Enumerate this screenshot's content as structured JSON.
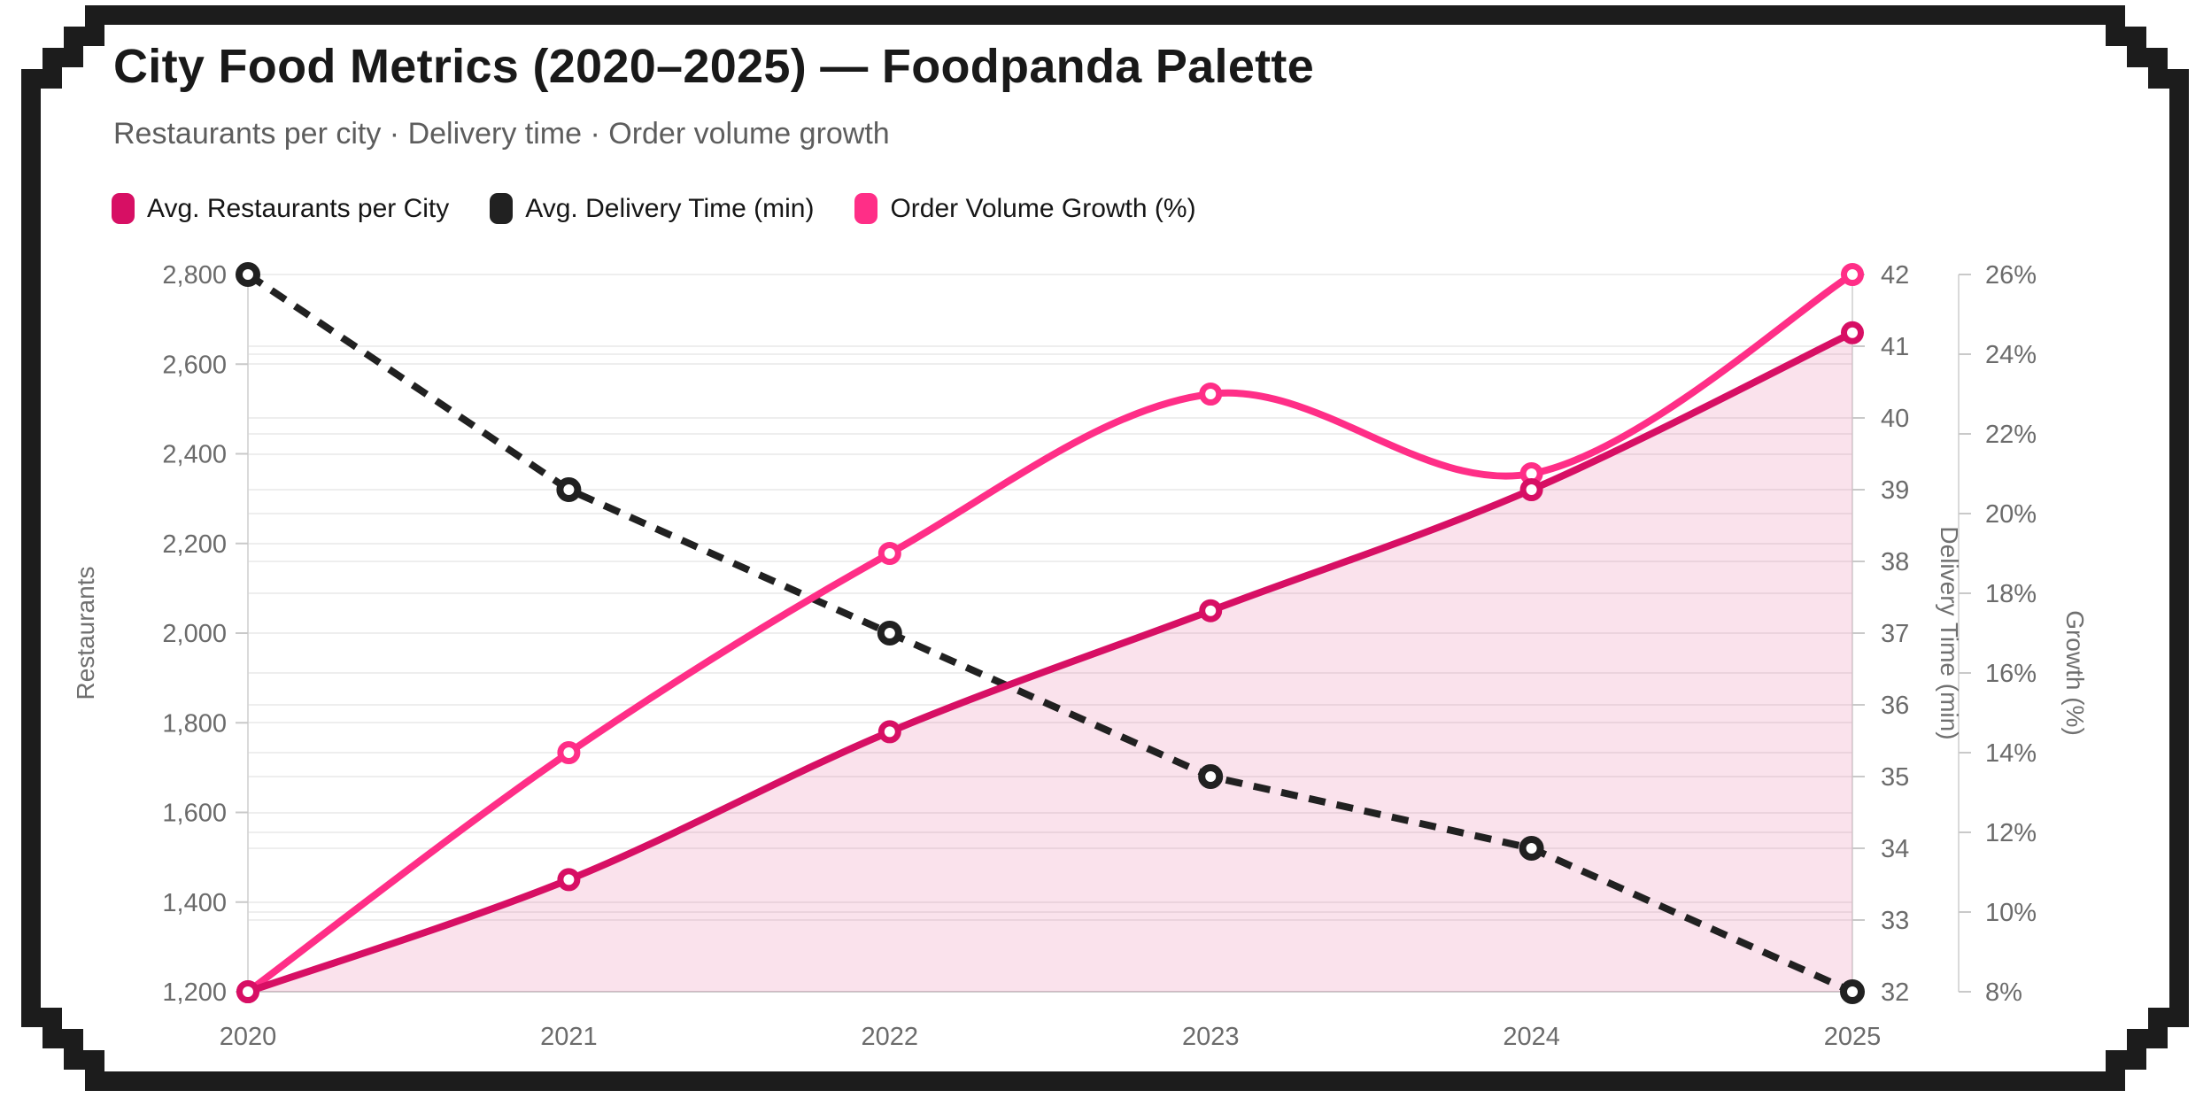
{
  "header": {
    "title": "City Food Metrics (2020–2025) — Foodpanda Palette",
    "subtitle": "Restaurants per city · Delivery time · Order volume growth"
  },
  "legend": [
    {
      "label": "Avg. Restaurants per City"
    },
    {
      "label": "Avg. Delivery Time (min)"
    },
    {
      "label": "Order Volume Growth (%)"
    }
  ],
  "colors": {
    "brand_crimson": "#d70f64",
    "brand_pink": "#ff2e87",
    "line_black": "#212121",
    "area_fill": "rgba(215,15,100,0.12)",
    "grid": "#e9e9e9",
    "axis_line": "#d6d6d6",
    "frame": "#1c1c1c"
  },
  "chart_data": {
    "type": "line",
    "x": [
      "2020",
      "2021",
      "2022",
      "2023",
      "2024",
      "2025"
    ],
    "series": [
      {
        "name": "Avg. Restaurants per City",
        "axis": "restaurants",
        "color": "#d70f64",
        "style": "solid-area",
        "smooth": true,
        "z": 3,
        "values": [
          1200,
          1450,
          1780,
          2050,
          2320,
          2670
        ]
      },
      {
        "name": "Avg. Delivery Time (min)",
        "axis": "delivery",
        "color": "#212121",
        "style": "dashed",
        "smooth": false,
        "z": 1,
        "values": [
          42,
          39,
          37,
          35,
          34,
          32
        ]
      },
      {
        "name": "Order Volume Growth (%)",
        "axis": "growth",
        "color": "#ff2e87",
        "style": "solid",
        "smooth": true,
        "z": 2,
        "values": [
          8,
          14,
          19,
          23,
          21,
          26
        ]
      }
    ],
    "axes": {
      "restaurants": {
        "label": "Restaurants",
        "min": 1200,
        "max": 2800,
        "step": 200,
        "side": "left",
        "format": "comma"
      },
      "delivery": {
        "label": "Delivery Time (min)",
        "min": 32,
        "max": 42,
        "step": 1,
        "side": "right",
        "format": "plain"
      },
      "growth": {
        "label": "Growth (%)",
        "min": 8,
        "max": 26,
        "step": 2,
        "side": "right2",
        "format": "percent"
      }
    },
    "grid": true,
    "legend_position": "top-left"
  }
}
